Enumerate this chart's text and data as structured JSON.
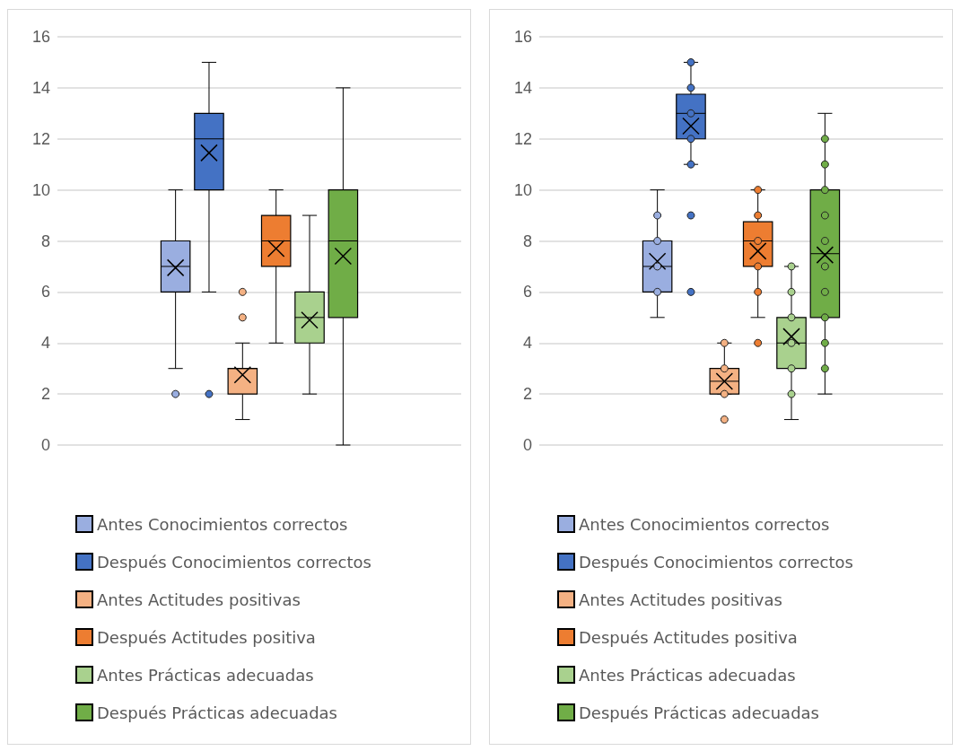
{
  "chart_data": [
    {
      "type": "box",
      "categories": [
        null
      ],
      "ylim": [
        0,
        16
      ],
      "yticks": [
        0,
        2,
        4,
        6,
        8,
        10,
        12,
        14,
        16
      ],
      "grid": "y",
      "legend": "bottom",
      "tick_labels": "y",
      "series": [
        {
          "name": "Antes Conocimientos correctos",
          "color": "#9aaee0",
          "boxes": [
            {
              "low": 3,
              "q1": 6,
              "median": 7,
              "q3": 8,
              "high": 10,
              "mean": 6.95,
              "outliers": [
                2
              ]
            }
          ]
        },
        {
          "name": "Después Conocimientos correctos",
          "color": "#4472c4",
          "boxes": [
            {
              "low": 6,
              "q1": 10,
              "median": 12,
              "q3": 13,
              "high": 15,
              "mean": 11.45,
              "outliers": [
                2
              ]
            }
          ]
        },
        {
          "name": "Antes Actitudes positivas",
          "color": "#f4b183",
          "boxes": [
            {
              "low": 1,
              "q1": 2,
              "median": 3,
              "q3": 3,
              "high": 4,
              "mean": 2.75,
              "outliers": [
                5,
                6
              ]
            }
          ]
        },
        {
          "name": "Después Actitudes positiva",
          "color": "#ed7d31",
          "boxes": [
            {
              "low": 4,
              "q1": 7,
              "median": 8,
              "q3": 9,
              "high": 10,
              "mean": 7.7
            }
          ]
        },
        {
          "name": "Antes Prácticas adecuadas",
          "color": "#a9d18e",
          "boxes": [
            {
              "low": 2,
              "q1": 4,
              "median": 5,
              "q3": 6,
              "high": 9,
              "mean": 4.9
            }
          ]
        },
        {
          "name": "Después Prácticas adecuadas",
          "color": "#70ad47",
          "boxes": [
            {
              "low": 0,
              "q1": 5,
              "median": 8,
              "q3": 10,
              "high": 14,
              "mean": 7.4
            }
          ]
        }
      ]
    },
    {
      "type": "box",
      "categories": [
        null
      ],
      "ylim": [
        0,
        16
      ],
      "yticks": [
        0,
        2,
        4,
        6,
        8,
        10,
        12,
        14,
        16
      ],
      "grid": "y",
      "legend": "bottom",
      "tick_labels": "y",
      "series": [
        {
          "name": "Antes Conocimientos correctos",
          "color": "#9aaee0",
          "boxes": [
            {
              "low": 5,
              "q1": 6,
              "median": 7,
              "q3": 8,
              "high": 10,
              "mean": 7.2,
              "outliers": [
                6,
                7,
                8,
                9
              ]
            }
          ]
        },
        {
          "name": "Después Conocimientos correctos",
          "color": "#4472c4",
          "boxes": [
            {
              "low": 11,
              "q1": 12,
              "median": 13,
              "q3": 13.75,
              "high": 15,
              "mean": 12.5,
              "outliers": [
                6,
                9,
                11,
                12,
                13,
                14,
                15
              ]
            }
          ]
        },
        {
          "name": "Antes Actitudes positivas",
          "color": "#f4b183",
          "boxes": [
            {
              "low": 2,
              "q1": 2,
              "median": 2.5,
              "q3": 3,
              "high": 4,
              "mean": 2.5,
              "outliers": [
                1,
                2,
                3,
                4
              ]
            }
          ]
        },
        {
          "name": "Después Actitudes positiva",
          "color": "#ed7d31",
          "boxes": [
            {
              "low": 5,
              "q1": 7,
              "median": 8,
              "q3": 8.75,
              "high": 10,
              "mean": 7.6,
              "outliers": [
                4,
                6,
                7,
                8,
                9,
                10
              ]
            }
          ]
        },
        {
          "name": "Antes Prácticas adecuadas",
          "color": "#a9d18e",
          "boxes": [
            {
              "low": 1,
              "q1": 3,
              "median": 4,
              "q3": 5,
              "high": 7,
              "mean": 4.25,
              "outliers": [
                2,
                3,
                4,
                5,
                6,
                7
              ]
            }
          ]
        },
        {
          "name": "Después Prácticas adecuadas",
          "color": "#70ad47",
          "boxes": [
            {
              "low": 2,
              "q1": 5,
              "median": 7.5,
              "q3": 10,
              "high": 13,
              "mean": 7.45,
              "outliers": [
                3,
                4,
                5,
                6,
                7,
                8,
                9,
                10,
                11,
                12
              ]
            }
          ]
        }
      ]
    }
  ]
}
